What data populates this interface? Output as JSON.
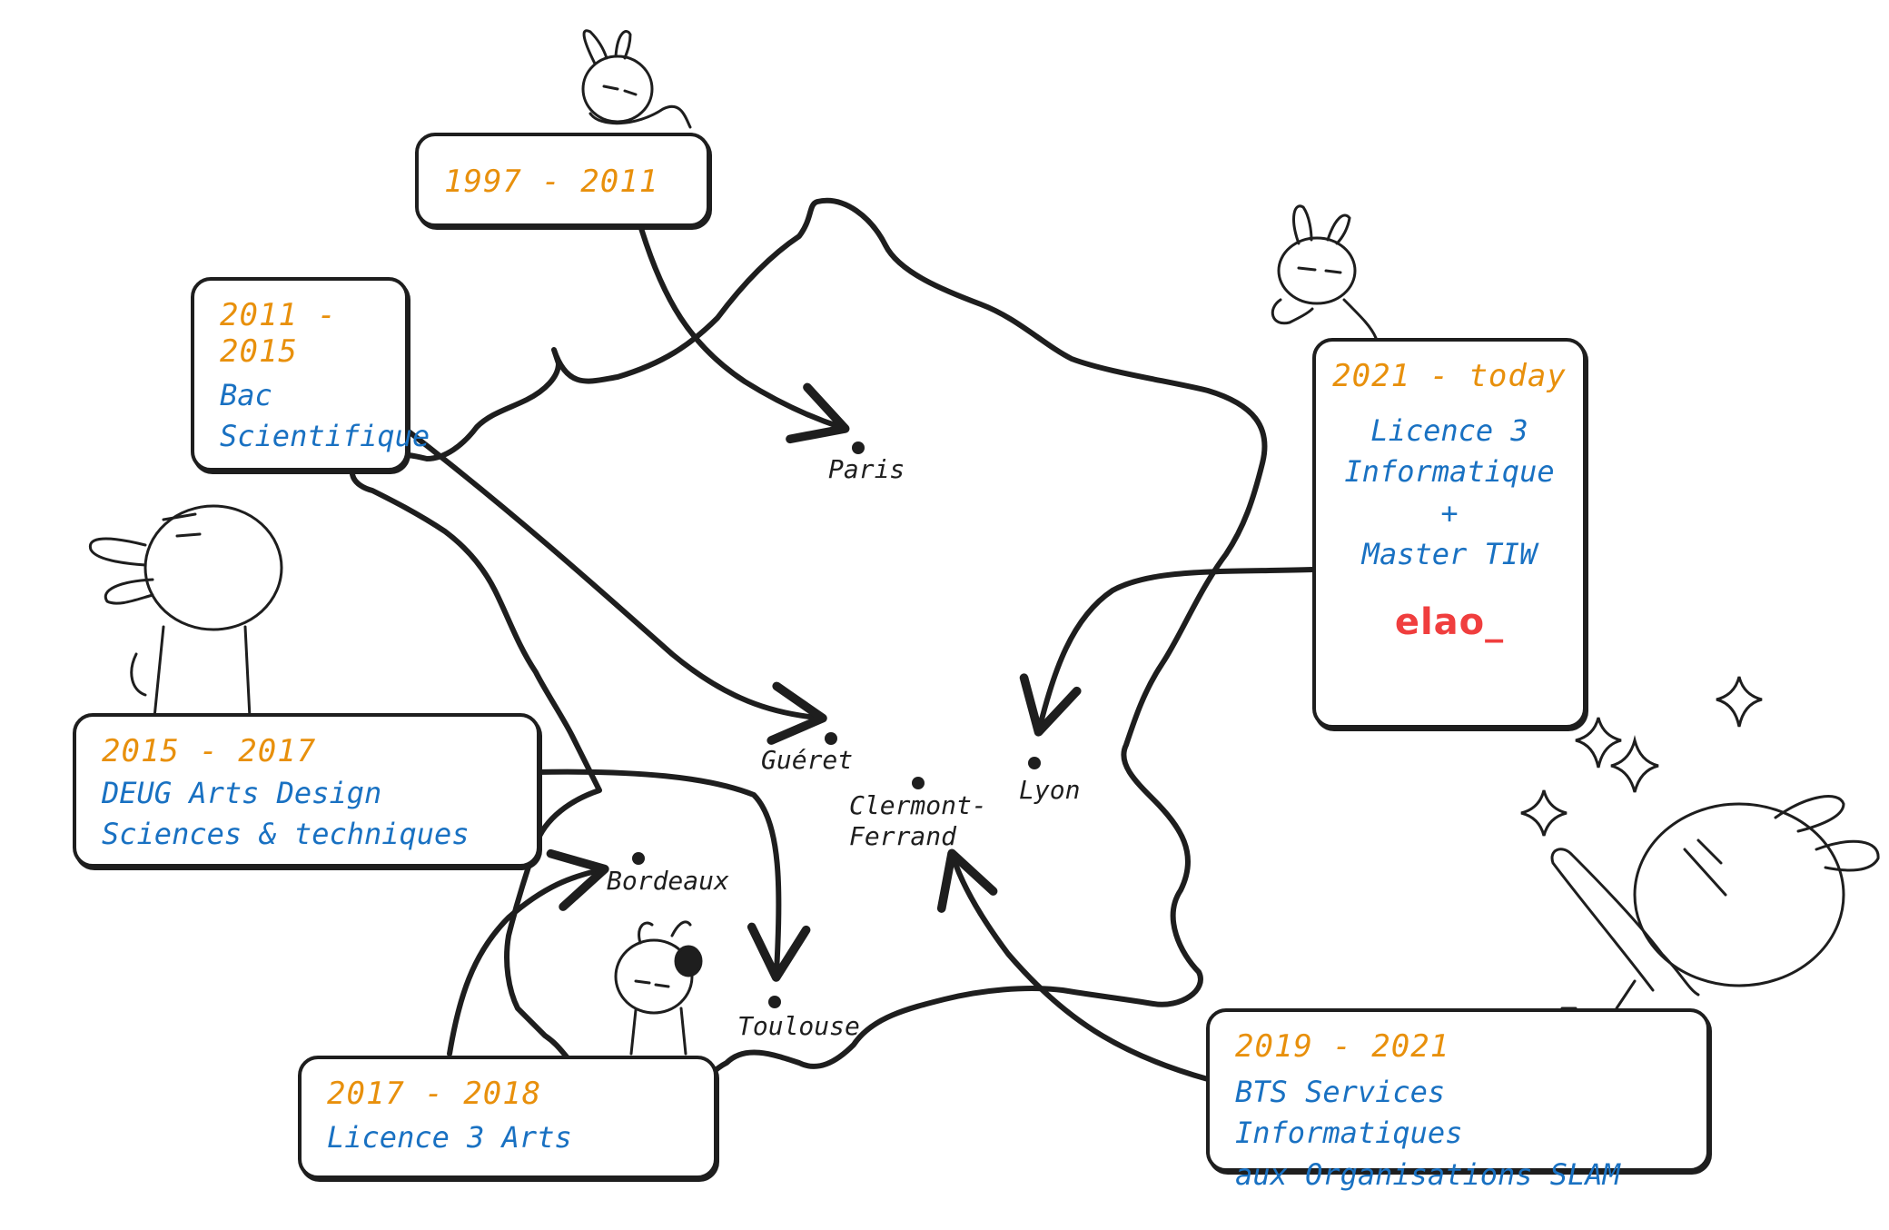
{
  "boxes": {
    "b1997": {
      "year": "1997 - 2011",
      "lines": []
    },
    "b2011": {
      "year": "2011 - 2015",
      "lines": [
        "Bac",
        "Scientifique"
      ]
    },
    "b2015": {
      "year": "2015 - 2017",
      "lines": [
        "DEUG Arts Design",
        "Sciences & techniques"
      ]
    },
    "b2017": {
      "year": "2017 - 2018",
      "lines": [
        "Licence 3 Arts"
      ]
    },
    "b2019": {
      "year": "2019 - 2021",
      "lines": [
        "BTS Services Informatiques",
        "aux Organisations SLAM"
      ]
    },
    "b2021": {
      "year": "2021 - today",
      "lines": [
        "Licence 3",
        "Informatique",
        "+",
        "Master TIW"
      ],
      "logo": "elao_"
    }
  },
  "cities": {
    "paris": "Paris",
    "gueret": "Guéret",
    "clermont": [
      "Clermont-",
      "Ferrand"
    ],
    "lyon": "Lyon",
    "bordeaux": "Bordeaux",
    "toulouse": "Toulouse"
  },
  "colors": {
    "year": "#e8900c",
    "text": "#1971c2",
    "stroke": "#1e1e1e",
    "logo": "#f03e3e"
  }
}
